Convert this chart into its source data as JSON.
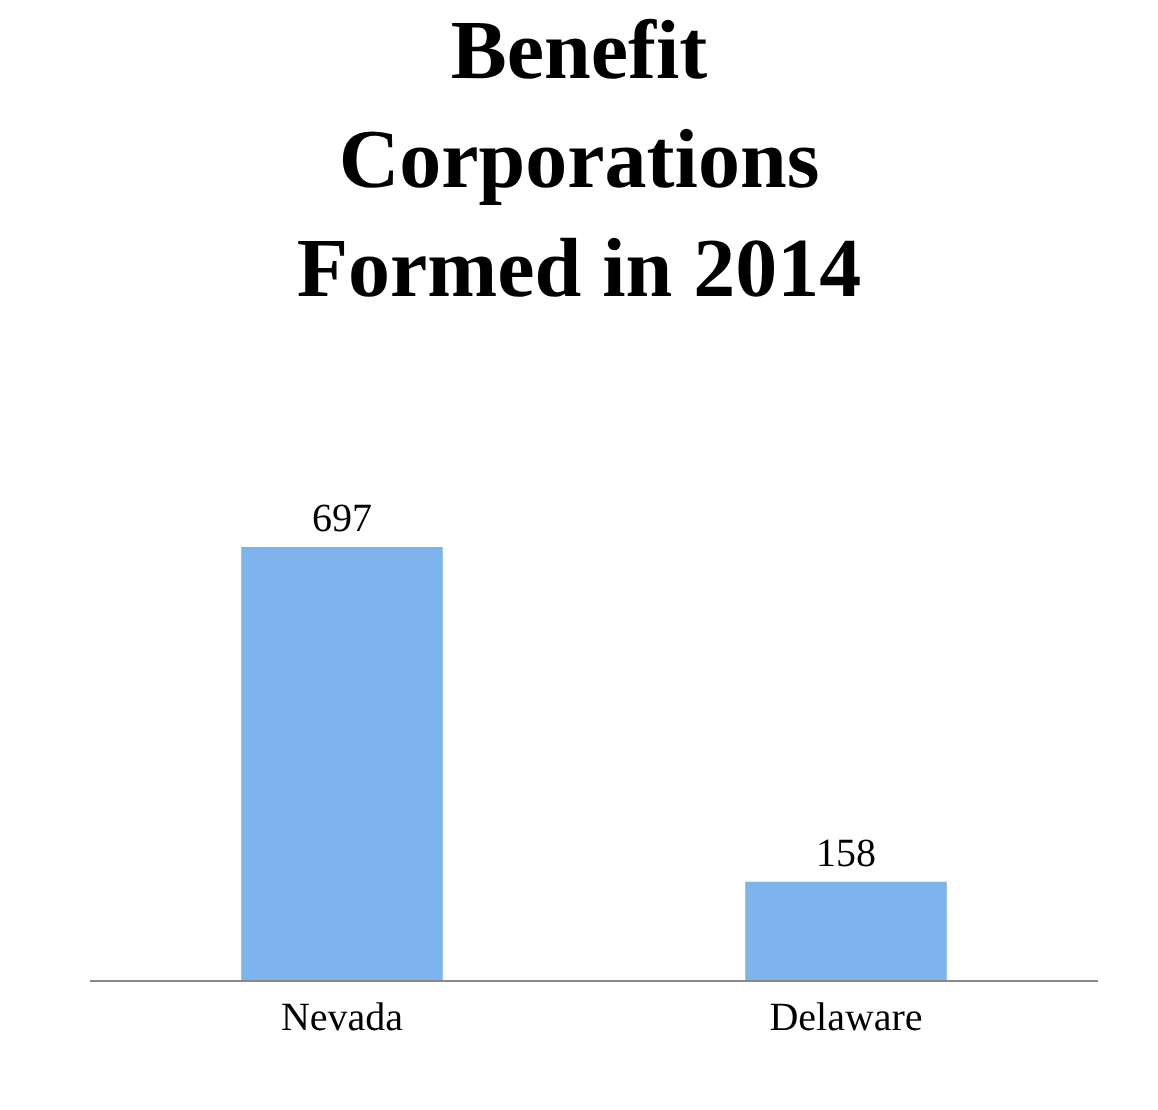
{
  "chart_data": {
    "type": "bar",
    "title": "Benefit\nCorporations\nFormed in 2014",
    "categories": [
      "Nevada",
      "Delaware"
    ],
    "values": [
      697,
      158
    ],
    "color": "#7fb3ee",
    "data_labels": true
  }
}
